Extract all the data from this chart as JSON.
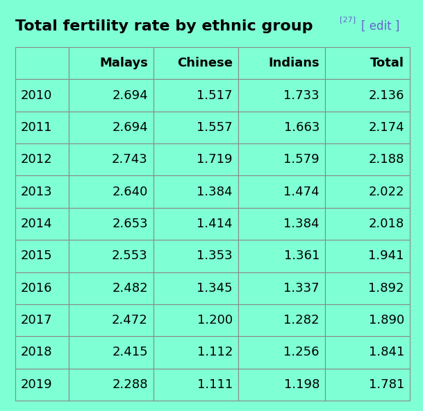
{
  "title_main": "Total fertility rate by ethnic group",
  "title_superscript": "[27]",
  "title_edit": "[ edit ]",
  "background_color": "#7FFFD4",
  "header_text_color": "#000000",
  "edit_color": "#6666cc",
  "superscript_color": "#6666cc",
  "border_color": "#888888",
  "columns": [
    "",
    "Malays",
    "Chinese",
    "Indians",
    "Total"
  ],
  "rows": [
    [
      "2010",
      "2.694",
      "1.517",
      "1.733",
      "2.136"
    ],
    [
      "2011",
      "2.694",
      "1.557",
      "1.663",
      "2.174"
    ],
    [
      "2012",
      "2.743",
      "1.719",
      "1.579",
      "2.188"
    ],
    [
      "2013",
      "2.640",
      "1.384",
      "1.474",
      "2.022"
    ],
    [
      "2014",
      "2.653",
      "1.414",
      "1.384",
      "2.018"
    ],
    [
      "2015",
      "2.553",
      "1.353",
      "1.361",
      "1.941"
    ],
    [
      "2016",
      "2.482",
      "1.345",
      "1.337",
      "1.892"
    ],
    [
      "2017",
      "2.472",
      "1.200",
      "1.282",
      "1.890"
    ],
    [
      "2018",
      "2.415",
      "1.112",
      "1.256",
      "1.841"
    ],
    [
      "2019",
      "2.288",
      "1.111",
      "1.198",
      "1.781"
    ]
  ],
  "title_fontsize": 16,
  "header_fontsize": 13,
  "data_fontsize": 13,
  "year_fontsize": 13,
  "superscript_fontsize": 8,
  "edit_fontsize": 12
}
